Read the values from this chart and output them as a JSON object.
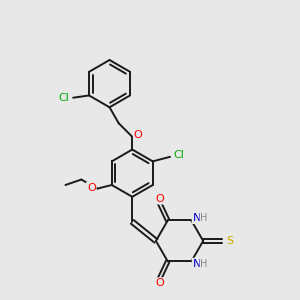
{
  "bg_color": "#e8e8e8",
  "bond_color": "#1a1a1a",
  "atom_colors": {
    "O": "#ff0000",
    "N": "#0000cc",
    "S": "#ccaa00",
    "Cl": "#00aa00",
    "H_gray": "#888888"
  },
  "figsize": [
    3.0,
    3.0
  ],
  "dpi": 100
}
